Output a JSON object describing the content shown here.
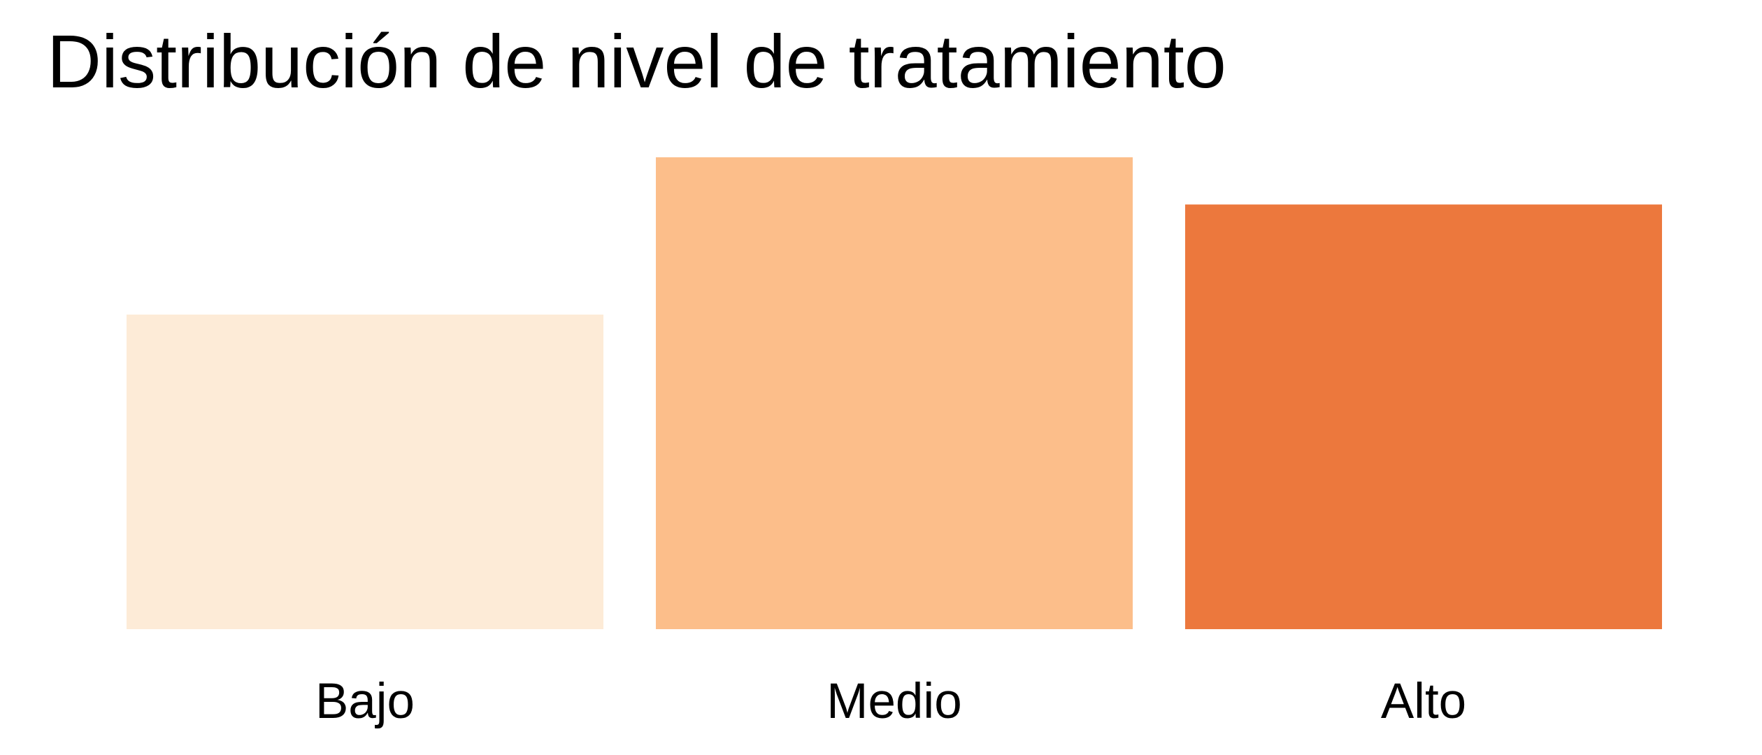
{
  "chart_data": {
    "type": "bar",
    "title": "Distribución de nivel de tratamiento",
    "xlabel": "",
    "ylabel": "",
    "categories": [
      "Bajo",
      "Medio",
      "Alto"
    ],
    "values": [
      2,
      3,
      2.7
    ],
    "colors": [
      "#FDEBD7",
      "#FCBE8A",
      "#EC783D"
    ],
    "ylim": [
      0,
      3
    ],
    "grid": false,
    "axes_visible": false,
    "legend": "none"
  }
}
